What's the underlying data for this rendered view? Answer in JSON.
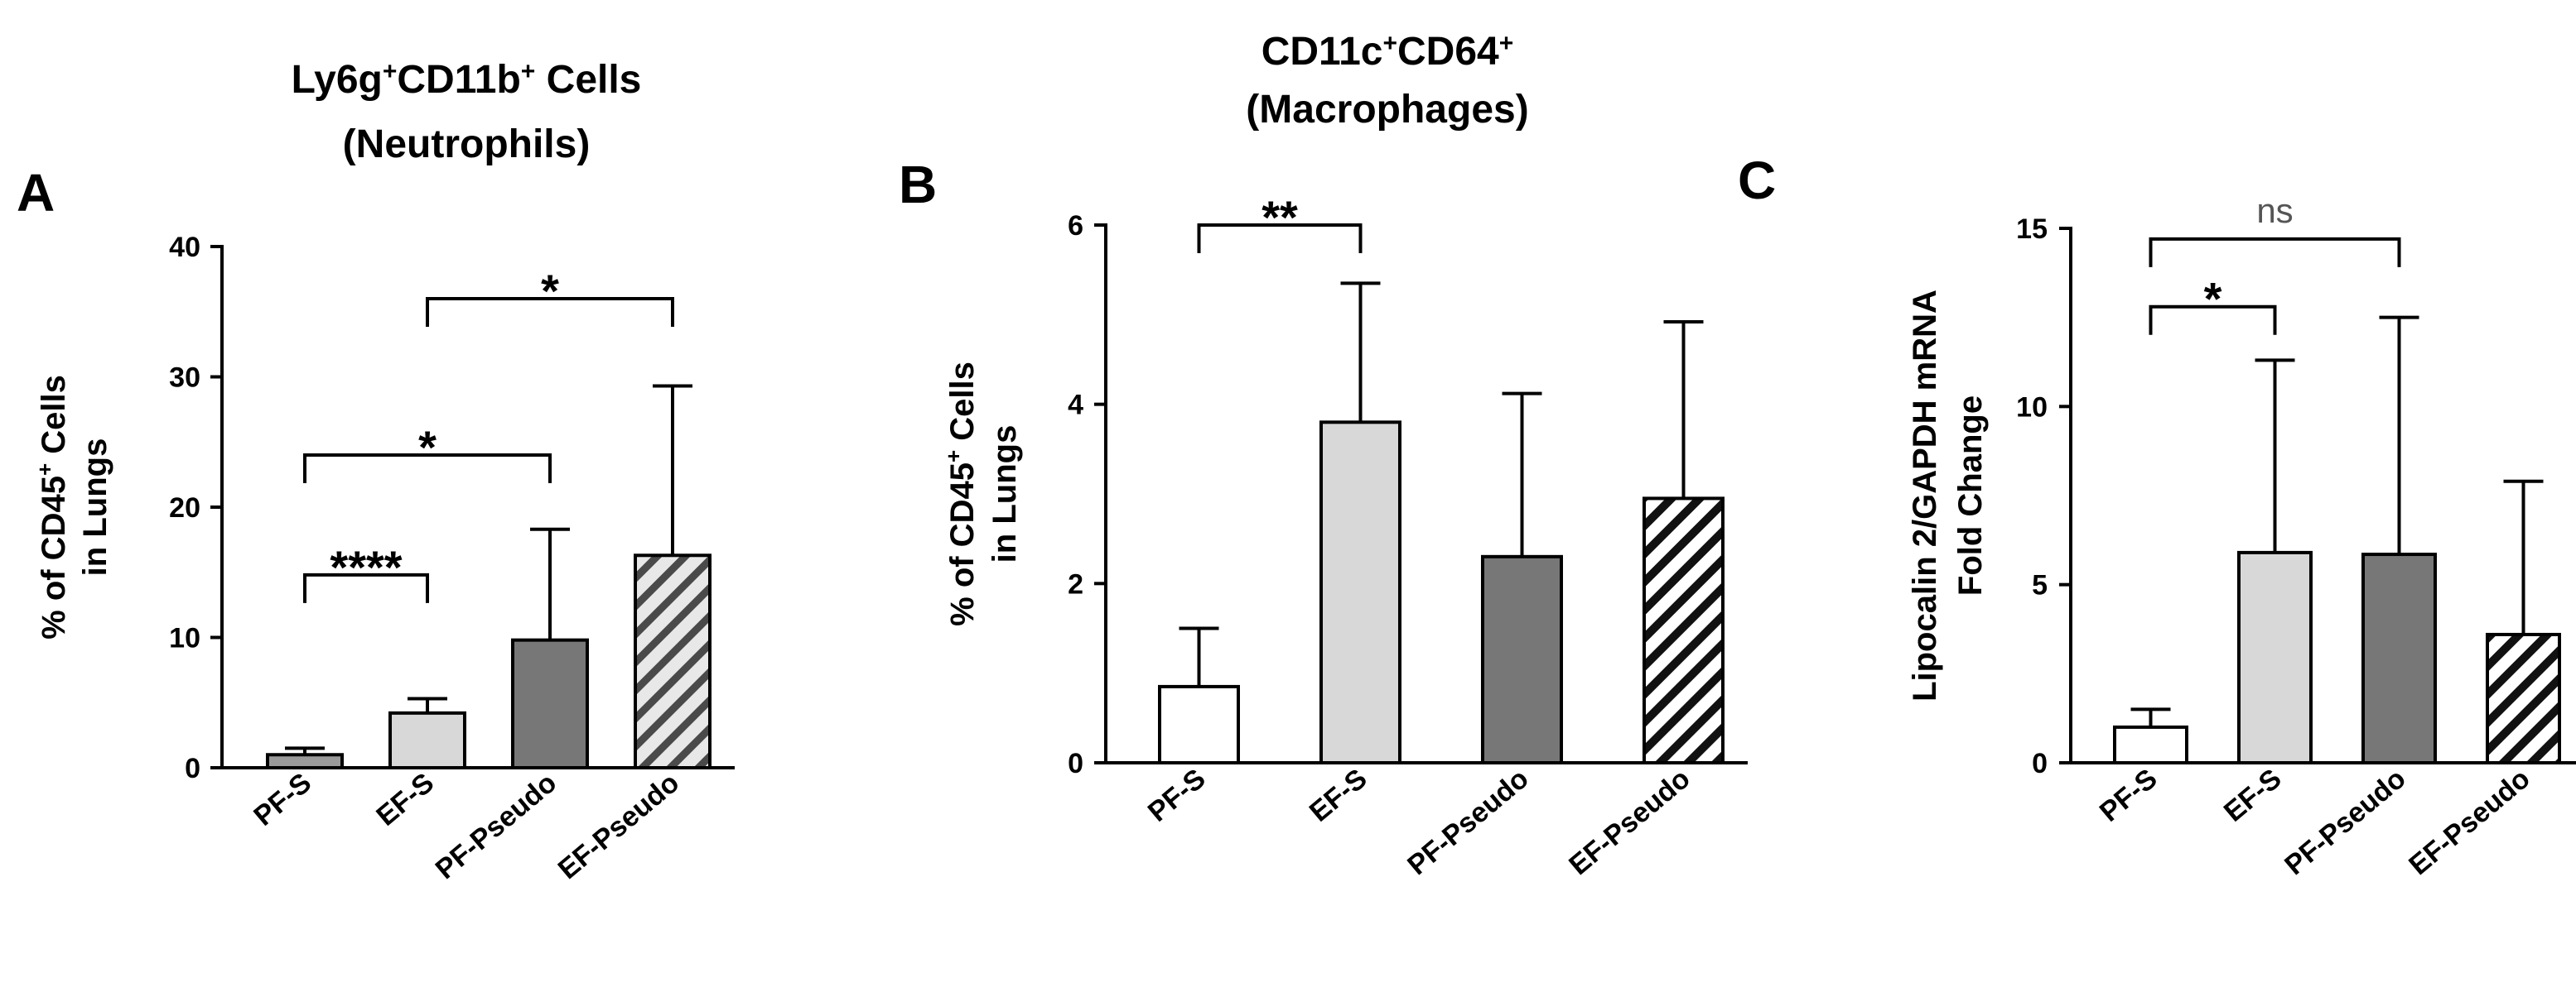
{
  "chart_data": [
    {
      "type": "bar",
      "panel": "A",
      "title_lines": [
        {
          "base": "Ly6g",
          "sup1": "+",
          "mid": "CD11b",
          "sup2": "+",
          "rest": " Cells"
        },
        {
          "text": "(Neutrophils)"
        }
      ],
      "ylabel_line1": {
        "pre": "% of CD45",
        "sup": "+",
        "post": " Cells"
      },
      "ylabel_line2": "in Lungs",
      "ylim": [
        0,
        40
      ],
      "ticks": [
        0,
        10,
        20,
        30,
        40
      ],
      "categories": [
        "PF-S",
        "EF-S",
        "PF-Pseudo",
        "EF-Pseudo"
      ],
      "values": [
        1.0,
        4.2,
        9.8,
        16.3
      ],
      "errors": [
        1.5,
        5.3,
        18.3,
        29.3
      ],
      "fills": [
        "#9a9a9a",
        "#d8d8d8",
        "#777777",
        "hatch-light"
      ],
      "significance": [
        {
          "from": 0,
          "to": 1,
          "height": 14.8,
          "label": "****"
        },
        {
          "from": 0,
          "to": 2,
          "height": 24.0,
          "label": "*"
        },
        {
          "from": 1,
          "to": 3,
          "height": 36.0,
          "label": "*"
        }
      ]
    },
    {
      "type": "bar",
      "panel": "B",
      "title_lines": [
        {
          "base": "CD11c",
          "sup1": "+",
          "mid": "CD64",
          "sup2": "+",
          "rest": ""
        },
        {
          "text": "(Macrophages)"
        }
      ],
      "ylabel_line1": {
        "pre": "% of CD45",
        "sup": "+",
        "post": " Cells"
      },
      "ylabel_line2": "in Lungs",
      "ylim": [
        0,
        6
      ],
      "ticks": [
        0,
        2,
        4,
        6
      ],
      "categories": [
        "PF-S",
        "EF-S",
        "PF-Pseudo",
        "EF-Pseudo"
      ],
      "values": [
        0.85,
        3.8,
        2.3,
        2.95
      ],
      "errors": [
        1.5,
        5.35,
        4.12,
        4.92
      ],
      "fills": [
        "#ffffff",
        "#d8d8d8",
        "#777777",
        "hatch-dark"
      ],
      "significance": [
        {
          "from": 0,
          "to": 1,
          "height": 6.0,
          "label": "**"
        }
      ]
    },
    {
      "type": "bar",
      "panel": "C",
      "title_lines": [],
      "ylabel_line1": {
        "pre": "Lipocalin 2/GAPDH mRNA",
        "sup": "",
        "post": ""
      },
      "ylabel_line2": "Fold Change",
      "ylim": [
        0,
        15
      ],
      "ticks": [
        0,
        5,
        10,
        15
      ],
      "categories": [
        "PF-S",
        "EF-S",
        "PF-Pseudo",
        "EF-Pseudo"
      ],
      "values": [
        1.0,
        5.9,
        5.85,
        3.6
      ],
      "errors": [
        1.5,
        11.3,
        12.5,
        7.9
      ],
      "fills": [
        "#ffffff",
        "#d8d8d8",
        "#777777",
        "hatch-dark"
      ],
      "significance": [
        {
          "from": 0,
          "to": 1,
          "height": 12.8,
          "label": "*"
        },
        {
          "from": 0,
          "to": 2,
          "height": 14.7,
          "label": "ns"
        }
      ]
    }
  ]
}
